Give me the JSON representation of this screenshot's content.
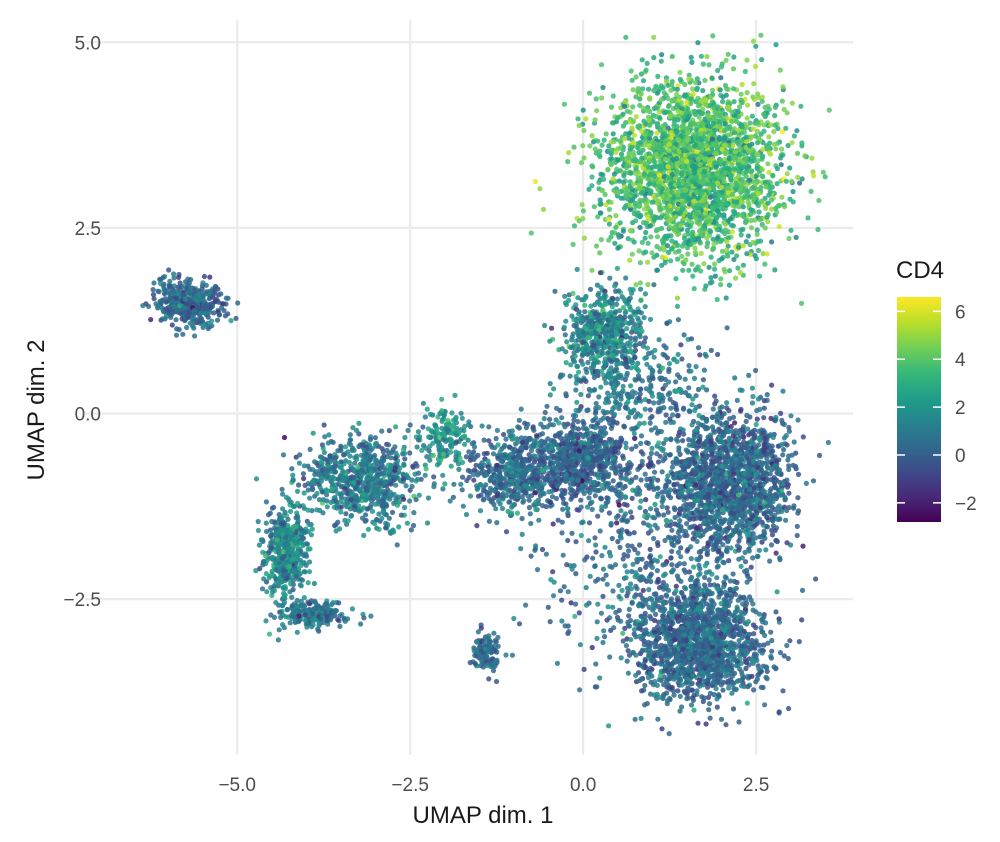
{
  "chart_data": {
    "type": "scatter",
    "xlabel": "UMAP dim. 1",
    "ylabel": "UMAP dim. 2",
    "xlim": [
      -7.2,
      3.9
    ],
    "ylim": [
      -4.6,
      5.3
    ],
    "x_ticks": [
      -5.0,
      -2.5,
      0.0,
      2.5
    ],
    "x_tick_labels": [
      "−5.0",
      "−2.5",
      "0.0",
      "2.5"
    ],
    "y_ticks": [
      -2.5,
      0.0,
      2.5,
      5.0
    ],
    "y_tick_labels": [
      "−2.5",
      "0.0",
      "2.5",
      "5.0"
    ],
    "grid": true,
    "color_variable": "CD4",
    "colormap": "viridis",
    "color_range": [
      -2.8,
      6.6
    ],
    "legend_ticks": [
      -2,
      0,
      2,
      4,
      6
    ],
    "legend_tick_labels": [
      "−2",
      "0",
      "2",
      "4",
      "6"
    ],
    "legend_placement": "right",
    "clusters": [
      {
        "cx": 1.6,
        "cy": 3.3,
        "sx": 1.05,
        "sy": 0.95,
        "n": 2600,
        "color_mean": 3.7,
        "color_sd": 1.0
      },
      {
        "cx": 0.3,
        "cy": 1.1,
        "sx": 0.45,
        "sy": 0.55,
        "n": 500,
        "color_mean": 1.6,
        "color_sd": 1.1
      },
      {
        "cx": 2.1,
        "cy": -0.9,
        "sx": 0.75,
        "sy": 0.75,
        "n": 1500,
        "color_mean": 0.3,
        "color_sd": 0.9
      },
      {
        "cx": 1.7,
        "cy": -3.1,
        "sx": 0.75,
        "sy": 0.6,
        "n": 1400,
        "color_mean": 0.4,
        "color_sd": 0.8
      },
      {
        "cx": 0.0,
        "cy": -0.6,
        "sx": 0.6,
        "sy": 0.45,
        "n": 700,
        "color_mean": 0.2,
        "color_sd": 0.8
      },
      {
        "cx": -1.0,
        "cy": -0.8,
        "sx": 0.55,
        "sy": 0.45,
        "n": 500,
        "color_mean": 0.5,
        "color_sd": 0.9
      },
      {
        "cx": -3.2,
        "cy": -0.9,
        "sx": 0.7,
        "sy": 0.45,
        "n": 700,
        "color_mean": 1.1,
        "color_sd": 1.0
      },
      {
        "cx": -4.3,
        "cy": -1.9,
        "sx": 0.25,
        "sy": 0.5,
        "n": 500,
        "color_mean": 1.4,
        "color_sd": 1.0
      },
      {
        "cx": -3.9,
        "cy": -2.7,
        "sx": 0.4,
        "sy": 0.15,
        "n": 200,
        "color_mean": 0.9,
        "color_sd": 0.8
      },
      {
        "cx": -2.0,
        "cy": -0.3,
        "sx": 0.25,
        "sy": 0.35,
        "n": 150,
        "color_mean": 1.9,
        "color_sd": 1.0
      },
      {
        "cx": -1.4,
        "cy": -3.2,
        "sx": 0.18,
        "sy": 0.22,
        "n": 120,
        "color_mean": 0.5,
        "color_sd": 0.8
      },
      {
        "cx": -5.7,
        "cy": 1.5,
        "sx": 0.4,
        "sy": 0.25,
        "n": 420,
        "color_mean": 0.4,
        "color_sd": 0.8
      },
      {
        "cx": 1.0,
        "cy": -2.0,
        "sx": 1.2,
        "sy": 1.2,
        "n": 500,
        "color_mean": 0.5,
        "color_sd": 0.9
      },
      {
        "cx": 0.8,
        "cy": 0.4,
        "sx": 1.0,
        "sy": 0.6,
        "n": 300,
        "color_mean": 0.9,
        "color_sd": 0.9
      }
    ],
    "colors": {
      "grid": "#ebebeb",
      "tick_text": "#4d4d4d",
      "title_text": "#1a1a1a",
      "viridis": [
        "#440154",
        "#482878",
        "#3e4989",
        "#31688e",
        "#26828e",
        "#1f9e89",
        "#35b779",
        "#6ece58",
        "#b5de2b",
        "#fde725"
      ]
    }
  }
}
